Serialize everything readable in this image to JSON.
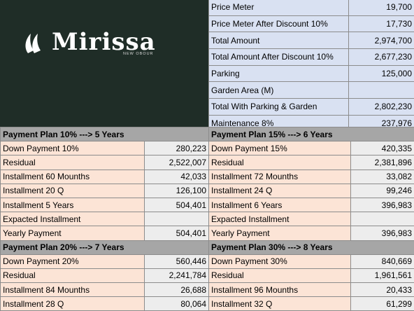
{
  "brand": {
    "name": "Mirissa",
    "tagline": "NEW OBOUR"
  },
  "colors": {
    "logo_bg": "#1f2d27",
    "summary_bg": "#d9e1f2",
    "header_bg": "#a6a6a6",
    "label_bg": "#fce4d6",
    "value_bg": "#ededed"
  },
  "summary": [
    {
      "label": "Price Meter",
      "value": "19,700"
    },
    {
      "label": "Price Meter After Discount  10%",
      "value": "17,730"
    },
    {
      "label": "Total Amount",
      "value": "2,974,700"
    },
    {
      "label": "Total Amount After Discount 10%",
      "value": "2,677,230"
    },
    {
      "label": "Parking",
      "value": "125,000"
    },
    {
      "label": "Garden Area  (M)",
      "value": ""
    },
    {
      "label": "Total With Parking & Garden",
      "value": "2,802,230"
    },
    {
      "label": "Maintenance 8%",
      "value": "237,976"
    }
  ],
  "plans": [
    {
      "left": {
        "title": "Payment Plan 10% ---> 5 Years",
        "rows": [
          {
            "label": "Down Payment 10%",
            "value": "280,223"
          },
          {
            "label": "Residual",
            "value": "2,522,007"
          },
          {
            "label": "Installment 60 Mounths",
            "value": "42,033"
          },
          {
            "label": "Installment 20 Q",
            "value": "126,100"
          },
          {
            "label": "Installment 5 Years",
            "value": "504,401"
          },
          {
            "label": "Expacted Installment",
            "value": ""
          },
          {
            "label": "Yearly Payment",
            "value": "504,401"
          }
        ]
      },
      "right": {
        "title": "Payment Plan 15% ---> 6 Years",
        "rows": [
          {
            "label": "Down Payment 15%",
            "value": "420,335"
          },
          {
            "label": "Residual",
            "value": "2,381,896"
          },
          {
            "label": "Installment 72 Mounths",
            "value": "33,082"
          },
          {
            "label": "Installment 24 Q",
            "value": "99,246"
          },
          {
            "label": "Installment 6 Years",
            "value": "396,983"
          },
          {
            "label": "Expacted Installment",
            "value": ""
          },
          {
            "label": "Yearly Payment",
            "value": "396,983"
          }
        ]
      }
    },
    {
      "left": {
        "title": "Payment Plan 20% ---> 7 Years",
        "rows": [
          {
            "label": "Down Payment 20%",
            "value": "560,446"
          },
          {
            "label": "Residual",
            "value": "2,241,784"
          },
          {
            "label": "Installment 84 Mounths",
            "value": "26,688"
          },
          {
            "label": "Installment 28 Q",
            "value": "80,064"
          }
        ]
      },
      "right": {
        "title": "Payment Plan 30% ---> 8 Years",
        "rows": [
          {
            "label": "Down Payment 30%",
            "value": "840,669"
          },
          {
            "label": "Residual",
            "value": "1,961,561"
          },
          {
            "label": "Installment 96 Mounths",
            "value": "20,433"
          },
          {
            "label": "Installment 32 Q",
            "value": "61,299"
          }
        ]
      }
    }
  ]
}
